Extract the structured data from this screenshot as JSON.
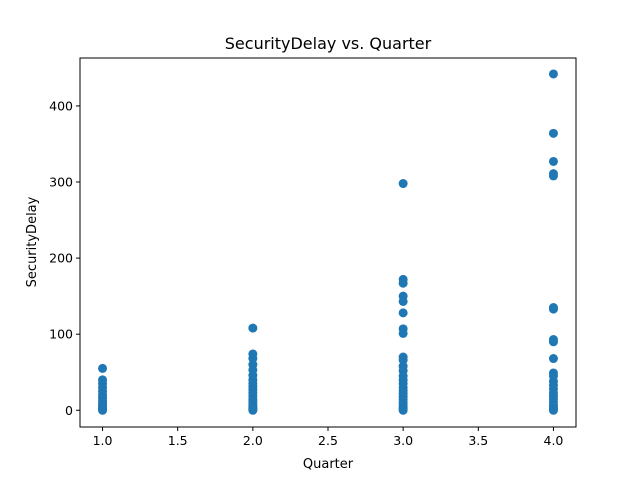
{
  "chart_data": {
    "type": "scatter",
    "title": "SecurityDelay vs. Quarter",
    "xlabel": "Quarter",
    "ylabel": "SecurityDelay",
    "xlim": [
      0.85,
      4.15
    ],
    "ylim": [
      -22,
      463
    ],
    "xticks": [
      1.0,
      1.5,
      2.0,
      2.5,
      3.0,
      3.5,
      4.0
    ],
    "xtick_labels": [
      "1.0",
      "1.5",
      "2.0",
      "2.5",
      "3.0",
      "3.5",
      "4.0"
    ],
    "yticks": [
      0,
      100,
      200,
      300,
      400
    ],
    "ytick_labels": [
      "0",
      "100",
      "200",
      "300",
      "400"
    ],
    "grid": false,
    "marker_color": "#1f77b4",
    "points": [
      {
        "x": 1,
        "y": 55
      },
      {
        "x": 1,
        "y": 40
      },
      {
        "x": 1,
        "y": 35
      },
      {
        "x": 1,
        "y": 30
      },
      {
        "x": 1,
        "y": 25
      },
      {
        "x": 1,
        "y": 20
      },
      {
        "x": 1,
        "y": 16
      },
      {
        "x": 1,
        "y": 12
      },
      {
        "x": 1,
        "y": 9
      },
      {
        "x": 1,
        "y": 6
      },
      {
        "x": 1,
        "y": 4
      },
      {
        "x": 1,
        "y": 2
      },
      {
        "x": 1,
        "y": 1
      },
      {
        "x": 1,
        "y": 0
      },
      {
        "x": 2,
        "y": 108
      },
      {
        "x": 2,
        "y": 74
      },
      {
        "x": 2,
        "y": 68
      },
      {
        "x": 2,
        "y": 60
      },
      {
        "x": 2,
        "y": 53
      },
      {
        "x": 2,
        "y": 46
      },
      {
        "x": 2,
        "y": 40
      },
      {
        "x": 2,
        "y": 35
      },
      {
        "x": 2,
        "y": 31
      },
      {
        "x": 2,
        "y": 27
      },
      {
        "x": 2,
        "y": 23
      },
      {
        "x": 2,
        "y": 19
      },
      {
        "x": 2,
        "y": 15
      },
      {
        "x": 2,
        "y": 12
      },
      {
        "x": 2,
        "y": 9
      },
      {
        "x": 2,
        "y": 6
      },
      {
        "x": 2,
        "y": 4
      },
      {
        "x": 2,
        "y": 2
      },
      {
        "x": 2,
        "y": 1
      },
      {
        "x": 2,
        "y": 0
      },
      {
        "x": 3,
        "y": 298
      },
      {
        "x": 3,
        "y": 172
      },
      {
        "x": 3,
        "y": 167
      },
      {
        "x": 3,
        "y": 150
      },
      {
        "x": 3,
        "y": 143
      },
      {
        "x": 3,
        "y": 128
      },
      {
        "x": 3,
        "y": 107
      },
      {
        "x": 3,
        "y": 101
      },
      {
        "x": 3,
        "y": 70
      },
      {
        "x": 3,
        "y": 66
      },
      {
        "x": 3,
        "y": 58
      },
      {
        "x": 3,
        "y": 52
      },
      {
        "x": 3,
        "y": 45
      },
      {
        "x": 3,
        "y": 40
      },
      {
        "x": 3,
        "y": 35
      },
      {
        "x": 3,
        "y": 30
      },
      {
        "x": 3,
        "y": 26
      },
      {
        "x": 3,
        "y": 22
      },
      {
        "x": 3,
        "y": 18
      },
      {
        "x": 3,
        "y": 14
      },
      {
        "x": 3,
        "y": 10
      },
      {
        "x": 3,
        "y": 7
      },
      {
        "x": 3,
        "y": 4
      },
      {
        "x": 3,
        "y": 2
      },
      {
        "x": 3,
        "y": 0
      },
      {
        "x": 4,
        "y": 442
      },
      {
        "x": 4,
        "y": 364
      },
      {
        "x": 4,
        "y": 327
      },
      {
        "x": 4,
        "y": 311
      },
      {
        "x": 4,
        "y": 308
      },
      {
        "x": 4,
        "y": 135
      },
      {
        "x": 4,
        "y": 133
      },
      {
        "x": 4,
        "y": 93
      },
      {
        "x": 4,
        "y": 90
      },
      {
        "x": 4,
        "y": 68
      },
      {
        "x": 4,
        "y": 49
      },
      {
        "x": 4,
        "y": 45
      },
      {
        "x": 4,
        "y": 38
      },
      {
        "x": 4,
        "y": 33
      },
      {
        "x": 4,
        "y": 28
      },
      {
        "x": 4,
        "y": 23
      },
      {
        "x": 4,
        "y": 19
      },
      {
        "x": 4,
        "y": 15
      },
      {
        "x": 4,
        "y": 11
      },
      {
        "x": 4,
        "y": 7
      },
      {
        "x": 4,
        "y": 4
      },
      {
        "x": 4,
        "y": 2
      },
      {
        "x": 4,
        "y": 0
      }
    ]
  }
}
